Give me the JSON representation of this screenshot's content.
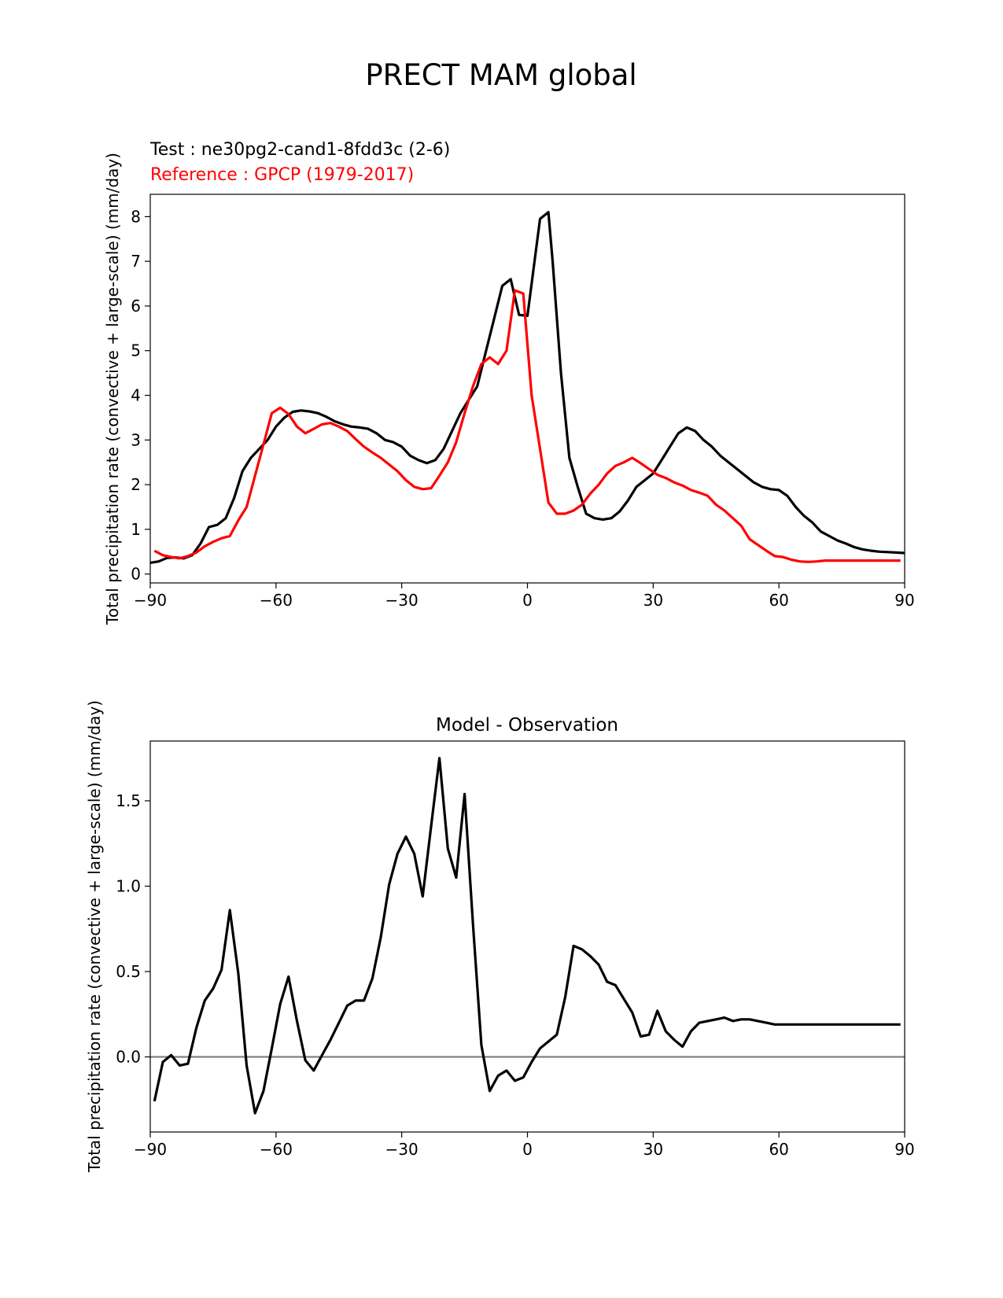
{
  "figure": {
    "title": "PRECT MAM global"
  },
  "colors": {
    "test": "#000000",
    "reference": "#ff0000",
    "zero_line": "#808080"
  },
  "chart_data": [
    {
      "type": "line",
      "title": "",
      "test_label": "Test : ne30pg2-cand1-8fdd3c (2-6)",
      "reference_label": "Reference : GPCP (1979-2017)",
      "xlabel": "",
      "ylabel": "Total precipitation rate (convective + large-scale) (mm/day)",
      "xlim": [
        -90,
        90
      ],
      "ylim": [
        -0.2,
        8.5
      ],
      "xticks": [
        -90,
        -60,
        -30,
        0,
        30,
        60,
        90
      ],
      "xtick_labels": [
        "−90",
        "−60",
        "−30",
        "0",
        "30",
        "60",
        "90"
      ],
      "yticks": [
        0,
        1,
        2,
        3,
        4,
        5,
        6,
        7,
        8
      ],
      "ytick_labels": [
        "0",
        "1",
        "2",
        "3",
        "4",
        "5",
        "6",
        "7",
        "8"
      ],
      "series": [
        {
          "name": "Test : ne30pg2-cand1-8fdd3c (2-6)",
          "color": "#000000",
          "x": [
            -90,
            -88,
            -86,
            -84,
            -82,
            -80,
            -78,
            -76,
            -74,
            -72,
            -70,
            -68,
            -66,
            -64,
            -62,
            -60,
            -58,
            -56,
            -54,
            -52,
            -50,
            -48,
            -46,
            -44,
            -42,
            -40,
            -38,
            -36,
            -34,
            -32,
            -30,
            -28,
            -26,
            -24,
            -22,
            -20,
            -18,
            -16,
            -14,
            -12,
            -10,
            -8,
            -6,
            -4,
            -2,
            0,
            1,
            3,
            5,
            6,
            8,
            10,
            12,
            14,
            16,
            18,
            20,
            22,
            24,
            26,
            28,
            30,
            32,
            34,
            36,
            38,
            40,
            42,
            44,
            46,
            48,
            50,
            52,
            54,
            56,
            58,
            60,
            62,
            64,
            66,
            68,
            70,
            72,
            74,
            76,
            78,
            80,
            82,
            84,
            86,
            88,
            90
          ],
          "values": [
            0.25,
            0.28,
            0.36,
            0.37,
            0.35,
            0.42,
            0.68,
            1.05,
            1.1,
            1.25,
            1.7,
            2.3,
            2.6,
            2.8,
            3.0,
            3.3,
            3.5,
            3.63,
            3.66,
            3.64,
            3.6,
            3.52,
            3.42,
            3.35,
            3.3,
            3.28,
            3.25,
            3.15,
            3.0,
            2.95,
            2.85,
            2.65,
            2.55,
            2.48,
            2.55,
            2.8,
            3.2,
            3.6,
            3.9,
            4.2,
            4.95,
            5.7,
            6.45,
            6.6,
            5.8,
            5.78,
            6.5,
            7.95,
            8.1,
            7.0,
            4.5,
            2.6,
            1.95,
            1.35,
            1.25,
            1.22,
            1.25,
            1.4,
            1.65,
            1.95,
            2.1,
            2.25,
            2.55,
            2.85,
            3.15,
            3.28,
            3.2,
            3.0,
            2.85,
            2.65,
            2.5,
            2.35,
            2.2,
            2.05,
            1.95,
            1.9,
            1.88,
            1.75,
            1.5,
            1.3,
            1.15,
            0.95,
            0.85,
            0.75,
            0.68,
            0.6,
            0.55,
            0.52,
            0.5,
            0.49,
            0.48,
            0.47
          ]
        },
        {
          "name": "Reference : GPCP (1979-2017)",
          "color": "#ff0000",
          "x": [
            -89,
            -87,
            -85,
            -83,
            -81,
            -79,
            -77,
            -75,
            -73,
            -71,
            -69,
            -67,
            -65,
            -63,
            -61,
            -59,
            -57,
            -55,
            -53,
            -51,
            -49,
            -47,
            -45,
            -43,
            -41,
            -39,
            -37,
            -35,
            -33,
            -31,
            -29,
            -27,
            -25,
            -23,
            -21,
            -19,
            -17,
            -15,
            -13,
            -11,
            -9,
            -7,
            -5,
            -3,
            -1,
            1,
            3,
            5,
            7,
            9,
            11,
            13,
            15,
            17,
            19,
            21,
            23,
            25,
            27,
            29,
            31,
            33,
            35,
            37,
            39,
            41,
            43,
            45,
            47,
            49,
            51,
            53,
            55,
            57,
            59,
            61,
            63,
            65,
            67,
            69,
            71,
            73,
            75,
            77,
            79,
            81,
            83,
            85,
            87,
            89
          ],
          "values": [
            0.52,
            0.42,
            0.38,
            0.35,
            0.4,
            0.48,
            0.62,
            0.72,
            0.8,
            0.85,
            1.2,
            1.5,
            2.2,
            2.9,
            3.6,
            3.72,
            3.58,
            3.3,
            3.15,
            3.25,
            3.35,
            3.38,
            3.3,
            3.2,
            3.02,
            2.85,
            2.72,
            2.6,
            2.45,
            2.3,
            2.1,
            1.95,
            1.9,
            1.92,
            2.2,
            2.5,
            2.95,
            3.6,
            4.2,
            4.7,
            4.85,
            4.7,
            5.0,
            6.35,
            6.28,
            4.0,
            2.8,
            1.6,
            1.35,
            1.35,
            1.42,
            1.55,
            1.8,
            2.0,
            2.25,
            2.42,
            2.5,
            2.6,
            2.48,
            2.35,
            2.22,
            2.15,
            2.05,
            1.98,
            1.88,
            1.82,
            1.75,
            1.55,
            1.42,
            1.25,
            1.08,
            0.78,
            0.65,
            0.52,
            0.4,
            0.38,
            0.32,
            0.28,
            0.27,
            0.28,
            0.3,
            0.3,
            0.3,
            0.3,
            0.3,
            0.3,
            0.3,
            0.3,
            0.3,
            0.3
          ]
        }
      ]
    },
    {
      "type": "line",
      "title": "Model - Observation",
      "xlabel": "",
      "ylabel": "Total precipitation rate (convective + large-scale) (mm/day)",
      "xlim": [
        -90,
        90
      ],
      "ylim": [
        -0.44,
        1.85
      ],
      "xticks": [
        -90,
        -60,
        -30,
        0,
        30,
        60,
        90
      ],
      "xtick_labels": [
        "−90",
        "−60",
        "−30",
        "0",
        "30",
        "60",
        "90"
      ],
      "yticks": [
        0.0,
        0.5,
        1.0,
        1.5
      ],
      "ytick_labels": [
        "0.0",
        "0.5",
        "1.0",
        "1.5"
      ],
      "zero_line": 0,
      "series": [
        {
          "color": "#000000",
          "x": [
            -89,
            -87,
            -85,
            -83,
            -81,
            -79,
            -77,
            -75,
            -73,
            -71,
            -69,
            -67,
            -65,
            -63,
            -61,
            -59,
            -57,
            -55,
            -53,
            -51,
            -49,
            -47,
            -45,
            -43,
            -41,
            -39,
            -37,
            -35,
            -33,
            -31,
            -29,
            -27,
            -25,
            -23,
            -21,
            -19,
            -17,
            -15,
            -13,
            -11,
            -9,
            -7,
            -5,
            -3,
            -1,
            1,
            3,
            5,
            7,
            9,
            11,
            13,
            15,
            17,
            19,
            21,
            23,
            25,
            27,
            29,
            31,
            33,
            35,
            37,
            39,
            41,
            43,
            45,
            47,
            49,
            51,
            53,
            55,
            57,
            59,
            61,
            63,
            65,
            67,
            69,
            71,
            73,
            75,
            77,
            79,
            81,
            83,
            85,
            87,
            89
          ],
          "values": [
            -0.26,
            -0.03,
            0.01,
            -0.05,
            -0.04,
            0.17,
            0.33,
            0.4,
            0.51,
            0.86,
            0.49,
            -0.05,
            -0.33,
            -0.2,
            0.05,
            0.31,
            0.47,
            0.21,
            -0.02,
            -0.08,
            0.01,
            0.1,
            0.2,
            0.3,
            0.33,
            0.33,
            0.46,
            0.7,
            1.01,
            1.19,
            1.29,
            1.19,
            0.94,
            1.35,
            1.75,
            1.22,
            1.05,
            1.54,
            0.78,
            0.07,
            -0.2,
            -0.11,
            -0.08,
            -0.14,
            -0.12,
            -0.03,
            0.05,
            0.09,
            0.13,
            0.35,
            0.65,
            0.63,
            0.59,
            0.54,
            0.44,
            0.42,
            0.34,
            0.26,
            0.12,
            0.13,
            0.27,
            0.15,
            0.1,
            0.06,
            0.15,
            0.2,
            0.21,
            0.22,
            0.23,
            0.21,
            0.22,
            0.22,
            0.21,
            0.2,
            0.19,
            0.19,
            0.19,
            0.19,
            0.19,
            0.19,
            0.19,
            0.19,
            0.19,
            0.19,
            0.19,
            0.19,
            0.19,
            0.19,
            0.19,
            0.19
          ]
        }
      ]
    }
  ]
}
